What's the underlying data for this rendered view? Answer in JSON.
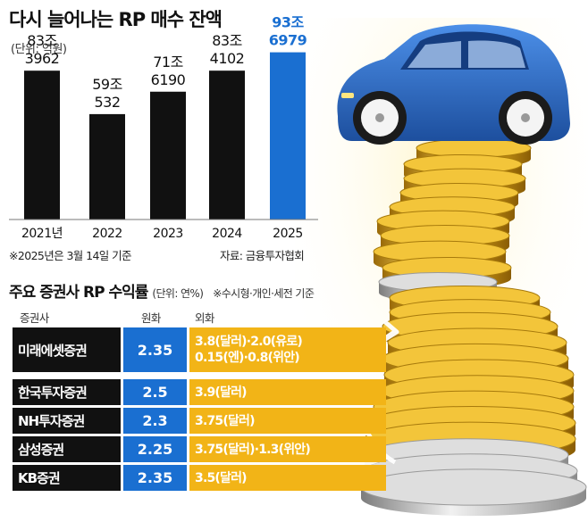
{
  "title": "다시 늘어나는 RP 매수 잔액",
  "unit": "(단위: 억원)",
  "note": "※2025년은 3월 14일 기준",
  "source": "자료: 금융투자협회",
  "colors": {
    "bar": "#111111",
    "highlight": "#1a6fd1",
    "gold": "#f2b417",
    "car": "#2563c8"
  },
  "chart_data": {
    "type": "bar",
    "categories": [
      "2021년",
      "2022",
      "2023",
      "2024",
      "2025"
    ],
    "values": [
      833962,
      590532,
      716190,
      834102,
      936979
    ],
    "value_labels": [
      [
        "83조",
        "3962"
      ],
      [
        "59조",
        "532"
      ],
      [
        "71조",
        "6190"
      ],
      [
        "83조",
        "4102"
      ],
      [
        "93조",
        "6979"
      ]
    ],
    "highlight_index": 4,
    "ylim": [
      0,
      1000000
    ]
  },
  "table": {
    "title": "주요 증권사 RP 수익률",
    "unit": "(단위: 연%)",
    "note": "※수시형·개인·세전 기준",
    "headers": {
      "company": "증권사",
      "won": "원화",
      "fx": "외화"
    },
    "rows": [
      {
        "name": "미래에셋증권",
        "won": "2.35",
        "fx": [
          "3.8(달러)·2.0(유로)",
          "0.15(엔)·0.8(위안)"
        ]
      },
      {
        "name": "한국투자증권",
        "won": "2.5",
        "fx": [
          "3.9(달러)"
        ]
      },
      {
        "name": "NH투자증권",
        "won": "2.3",
        "fx": [
          "3.75(달러)"
        ]
      },
      {
        "name": "삼성증권",
        "won": "2.25",
        "fx": [
          "3.75(달러)·1.3(위안)"
        ]
      },
      {
        "name": "KB증권",
        "won": "2.35",
        "fx": [
          "3.5(달러)"
        ]
      }
    ]
  }
}
